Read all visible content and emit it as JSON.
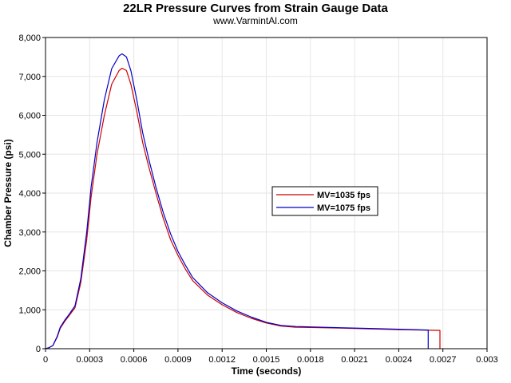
{
  "chart_data": {
    "type": "line",
    "title": "22LR Pressure Curves from Strain Gauge Data",
    "subtitle": "www.VarmintAl.com",
    "xlabel": "Time (seconds)",
    "ylabel": "Chamber Pressure (psi)",
    "xlim": [
      0,
      0.003
    ],
    "ylim": [
      0,
      8000
    ],
    "x_ticks": [
      "0",
      "0.0003",
      "0.0006",
      "0.0009",
      "0.0012",
      "0.0015",
      "0.0018",
      "0.0021",
      "0.0024",
      "0.0027",
      "0.003"
    ],
    "y_ticks": [
      "0",
      "1,000",
      "2,000",
      "3,000",
      "4,000",
      "5,000",
      "6,000",
      "7,000",
      "8,000"
    ],
    "x_tick_values": [
      0,
      0.0003,
      0.0006,
      0.0009,
      0.0012,
      0.0015,
      0.0018,
      0.0021,
      0.0024,
      0.0027,
      0.003
    ],
    "y_tick_values": [
      0,
      1000,
      2000,
      3000,
      4000,
      5000,
      6000,
      7000,
      8000
    ],
    "grid": true,
    "legend_position": "right-center",
    "series": [
      {
        "name": "MV=1035 fps",
        "color": "#cc0000",
        "points": [
          [
            0,
            0
          ],
          [
            2e-05,
            20
          ],
          [
            5e-05,
            80
          ],
          [
            8e-05,
            300
          ],
          [
            0.0001,
            520
          ],
          [
            0.00013,
            700
          ],
          [
            0.00016,
            850
          ],
          [
            0.0002,
            1050
          ],
          [
            0.00024,
            1700
          ],
          [
            0.00028,
            2800
          ],
          [
            0.00031,
            3900
          ],
          [
            0.00035,
            5000
          ],
          [
            0.0004,
            6000
          ],
          [
            0.00045,
            6800
          ],
          [
            0.0005,
            7150
          ],
          [
            0.00052,
            7210
          ],
          [
            0.00055,
            7150
          ],
          [
            0.00058,
            6800
          ],
          [
            0.00062,
            6100
          ],
          [
            0.00066,
            5300
          ],
          [
            0.0007,
            4700
          ],
          [
            0.00075,
            4000
          ],
          [
            0.0008,
            3350
          ],
          [
            0.00085,
            2800
          ],
          [
            0.0009,
            2400
          ],
          [
            0.00095,
            2050
          ],
          [
            0.001,
            1750
          ],
          [
            0.0011,
            1380
          ],
          [
            0.0012,
            1130
          ],
          [
            0.0013,
            930
          ],
          [
            0.0014,
            780
          ],
          [
            0.0015,
            660
          ],
          [
            0.0016,
            580
          ],
          [
            0.0017,
            550
          ],
          [
            0.0018,
            545
          ],
          [
            0.002,
            530
          ],
          [
            0.0022,
            510
          ],
          [
            0.0024,
            490
          ],
          [
            0.00268,
            470
          ],
          [
            0.00268,
            0
          ]
        ]
      },
      {
        "name": "MV=1075 fps",
        "color": "#0000cc",
        "points": [
          [
            0,
            0
          ],
          [
            2e-05,
            20
          ],
          [
            5e-05,
            80
          ],
          [
            8e-05,
            320
          ],
          [
            0.0001,
            550
          ],
          [
            0.00013,
            730
          ],
          [
            0.00016,
            880
          ],
          [
            0.0002,
            1100
          ],
          [
            0.00024,
            1800
          ],
          [
            0.00028,
            3000
          ],
          [
            0.00031,
            4150
          ],
          [
            0.00035,
            5300
          ],
          [
            0.0004,
            6400
          ],
          [
            0.00045,
            7200
          ],
          [
            0.0005,
            7530
          ],
          [
            0.00052,
            7580
          ],
          [
            0.00055,
            7500
          ],
          [
            0.00058,
            7150
          ],
          [
            0.00062,
            6400
          ],
          [
            0.00066,
            5550
          ],
          [
            0.0007,
            4900
          ],
          [
            0.00075,
            4150
          ],
          [
            0.0008,
            3500
          ],
          [
            0.00085,
            2950
          ],
          [
            0.0009,
            2500
          ],
          [
            0.00095,
            2150
          ],
          [
            0.001,
            1830
          ],
          [
            0.0011,
            1440
          ],
          [
            0.0012,
            1180
          ],
          [
            0.0013,
            970
          ],
          [
            0.0014,
            810
          ],
          [
            0.0015,
            680
          ],
          [
            0.0016,
            600
          ],
          [
            0.0017,
            570
          ],
          [
            0.0018,
            560
          ],
          [
            0.002,
            540
          ],
          [
            0.0022,
            520
          ],
          [
            0.0024,
            500
          ],
          [
            0.0026,
            480
          ],
          [
            0.0026,
            0
          ]
        ]
      }
    ]
  }
}
